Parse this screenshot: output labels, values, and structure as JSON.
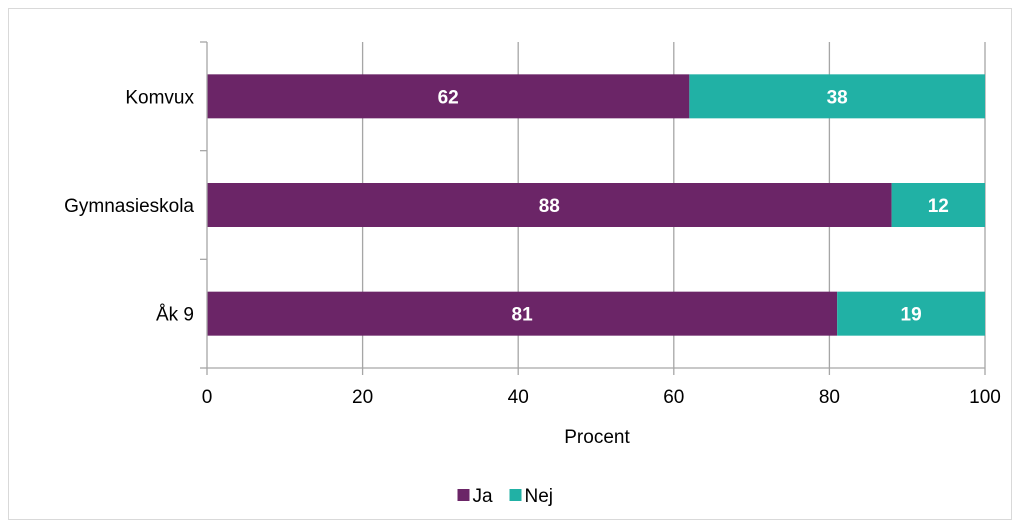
{
  "chart_data": {
    "type": "bar",
    "orientation": "horizontal",
    "stacked": true,
    "categories": [
      "Komvux",
      "Gymnasieskola",
      "Åk 9"
    ],
    "series": [
      {
        "name": "Ja",
        "values": [
          62,
          88,
          81
        ],
        "color": "#6b2567"
      },
      {
        "name": "Nej",
        "values": [
          38,
          12,
          19
        ],
        "color": "#21b1a5"
      }
    ],
    "xlabel": "Procent",
    "xlim": [
      0,
      100
    ],
    "xticks": [
      "0",
      "20",
      "40",
      "60",
      "80",
      "100"
    ],
    "grid": true,
    "legend": "bottom"
  }
}
